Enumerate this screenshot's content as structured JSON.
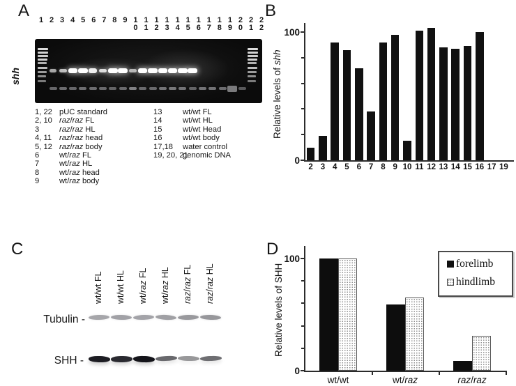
{
  "figure": {
    "panels": {
      "a": "A",
      "b": "B",
      "c": "C",
      "d": "D"
    }
  },
  "italic_terms": [
    "raz",
    "shh"
  ],
  "panelA": {
    "gene_label": "shh",
    "lane_numbers": [
      "1",
      "2",
      "3",
      "4",
      "5",
      "6",
      "7",
      "8",
      "9",
      "10",
      "11",
      "12",
      "13",
      "14",
      "15",
      "16",
      "17",
      "18",
      "19",
      "20",
      "21",
      "22"
    ],
    "legend_columns": [
      [
        {
          "key": "1, 22",
          "label": "pUC standard"
        },
        {
          "key": "2, 10",
          "label": "raz/raz FL"
        },
        {
          "key": "3",
          "label": "raz/raz HL"
        },
        {
          "key": "4, 11",
          "label": "raz/raz head"
        },
        {
          "key": "5, 12",
          "label": "raz/raz body"
        },
        {
          "key": "6",
          "label": "wt/raz FL"
        },
        {
          "key": "7",
          "label": "wt/raz HL"
        },
        {
          "key": "8",
          "label": "wt/raz head"
        },
        {
          "key": "9",
          "label": "wt/raz body"
        }
      ],
      [
        {
          "key": "13",
          "label": "wt/wt FL"
        },
        {
          "key": "14",
          "label": "wt/wt HL"
        },
        {
          "key": "15",
          "label": "wt/wt Head"
        },
        {
          "key": "16",
          "label": "wt/wt body"
        },
        {
          "key": "17,18",
          "label": "water control"
        },
        {
          "key": "19, 20, 21",
          "label": "genomic DNA"
        }
      ]
    ],
    "gel": {
      "ladder_rungs": [
        {
          "y": 13,
          "w": 15,
          "o": 0.95
        },
        {
          "y": 18,
          "w": 15,
          "o": 0.9
        },
        {
          "y": 23,
          "w": 15,
          "o": 0.88
        },
        {
          "y": 28,
          "w": 14,
          "o": 0.9
        },
        {
          "y": 33,
          "w": 13,
          "o": 0.75
        },
        {
          "y": 40,
          "w": 14,
          "o": 0.8
        },
        {
          "y": 46,
          "w": 13,
          "o": 0.65
        },
        {
          "y": 52,
          "w": 12,
          "o": 0.6
        },
        {
          "y": 59,
          "w": 12,
          "o": 0.5
        }
      ],
      "shh_bands": [
        {
          "lane": 2,
          "intensity": 0.3
        },
        {
          "lane": 3,
          "intensity": 0.45
        },
        {
          "lane": 4,
          "intensity": 1.0
        },
        {
          "lane": 5,
          "intensity": 0.95
        },
        {
          "lane": 6,
          "intensity": 0.8
        },
        {
          "lane": 7,
          "intensity": 0.65
        },
        {
          "lane": 8,
          "intensity": 1.0
        },
        {
          "lane": 9,
          "intensity": 0.95
        },
        {
          "lane": 10,
          "intensity": 0.35
        },
        {
          "lane": 11,
          "intensity": 1.0
        },
        {
          "lane": 12,
          "intensity": 1.0
        },
        {
          "lane": 13,
          "intensity": 0.95
        },
        {
          "lane": 14,
          "intensity": 0.95
        },
        {
          "lane": 15,
          "intensity": 0.95
        },
        {
          "lane": 16,
          "intensity": 1.0
        }
      ],
      "lower_bands": [
        {
          "lane": 2,
          "intensity": 0.5
        },
        {
          "lane": 3,
          "intensity": 0.55
        },
        {
          "lane": 4,
          "intensity": 0.5
        },
        {
          "lane": 5,
          "intensity": 0.55
        },
        {
          "lane": 6,
          "intensity": 0.55
        },
        {
          "lane": 7,
          "intensity": 0.5
        },
        {
          "lane": 8,
          "intensity": 0.45
        },
        {
          "lane": 9,
          "intensity": 0.5
        },
        {
          "lane": 10,
          "intensity": 0.75
        },
        {
          "lane": 11,
          "intensity": 0.5
        },
        {
          "lane": 12,
          "intensity": 0.5
        },
        {
          "lane": 13,
          "intensity": 0.6
        },
        {
          "lane": 14,
          "intensity": 0.65
        },
        {
          "lane": 15,
          "intensity": 0.6
        },
        {
          "lane": 16,
          "intensity": 0.45
        },
        {
          "lane": 17,
          "intensity": 0.6
        },
        {
          "lane": 18,
          "intensity": 0.6
        },
        {
          "lane": 19,
          "intensity": 0.55
        },
        {
          "lane": 20,
          "intensity": 0.7,
          "blob": true
        },
        {
          "lane": 21,
          "intensity": 0.35
        }
      ]
    }
  },
  "panelC": {
    "samples": [
      "wt/wt FL",
      "wt/wt HL",
      "wt/raz FL",
      "wt/raz HL",
      "raz/raz FL",
      "raz/raz HL"
    ],
    "rows": [
      {
        "label": "Tubulin -",
        "intensities": [
          0.45,
          0.5,
          0.48,
          0.52,
          0.6,
          0.62
        ]
      },
      {
        "label": "SHH -",
        "intensities": [
          0.95,
          0.88,
          1.0,
          0.55,
          0.3,
          0.52
        ]
      }
    ]
  },
  "chart_data": [
    {
      "panel": "B",
      "type": "bar",
      "title": "",
      "xlabel": "",
      "ylabel": "Relative levels of shh",
      "categories": [
        "2",
        "3",
        "4",
        "5",
        "6",
        "7",
        "8",
        "9",
        "10",
        "11",
        "12",
        "13",
        "14",
        "15",
        "16",
        "17",
        "19"
      ],
      "values": [
        10,
        19,
        92,
        86,
        72,
        38,
        92,
        98,
        15,
        101,
        103,
        88,
        87,
        89,
        100,
        0,
        0
      ],
      "ylim": [
        0,
        110
      ],
      "yticks_labeled": [
        0,
        100
      ],
      "yticks_minor": [
        20,
        40,
        60,
        80
      ],
      "grid": false,
      "bar_color": "#111111"
    },
    {
      "panel": "D",
      "type": "bar",
      "title": "",
      "xlabel": "",
      "ylabel": "Relative levels of SHH",
      "categories": [
        "wt/wt",
        "wt/raz",
        "raz/raz"
      ],
      "series": [
        {
          "name": "forelimb",
          "values": [
            100,
            59,
            9
          ],
          "fill": "solid-black"
        },
        {
          "name": "hindlimb",
          "values": [
            100,
            65,
            31
          ],
          "fill": "stipple-dots"
        }
      ],
      "ylim": [
        0,
        110
      ],
      "yticks_labeled": [
        0,
        100
      ],
      "yticks_minor": [
        20,
        40,
        60,
        80
      ],
      "grid": false,
      "legend": {
        "position": "top-right",
        "entries": [
          "forelimb",
          "hindlimb"
        ]
      }
    }
  ]
}
